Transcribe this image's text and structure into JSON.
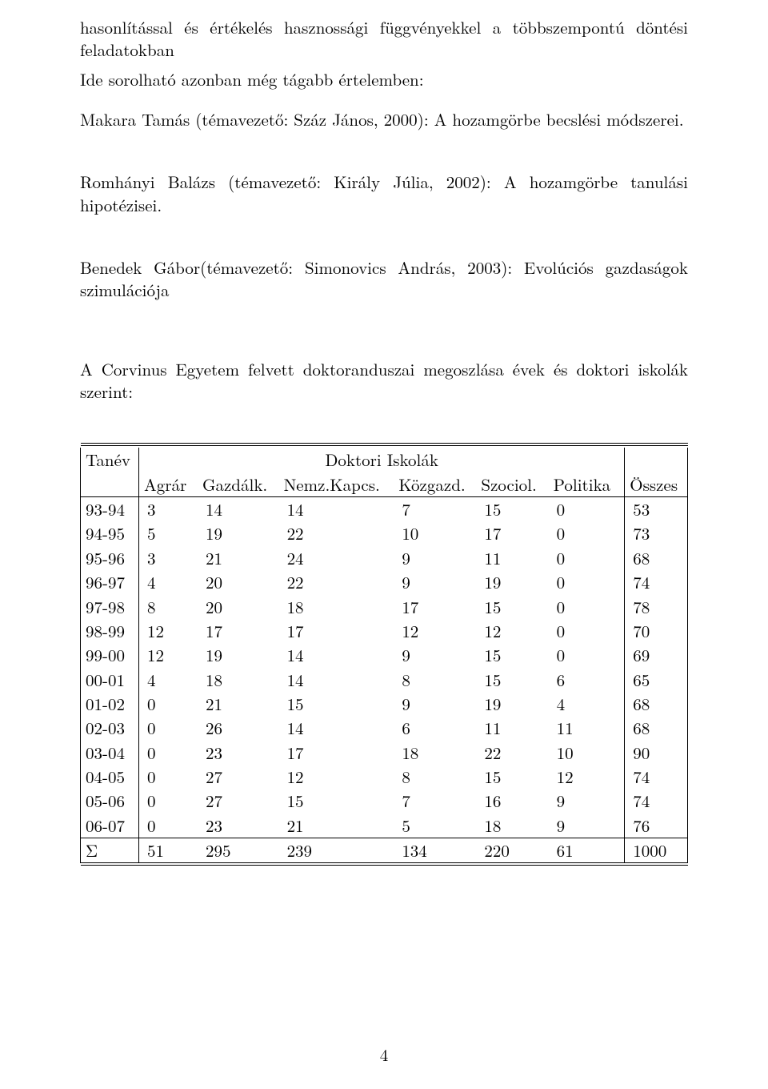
{
  "paragraphs": {
    "p1": "hasonlítással és értékelés hasznossági függvényekkel a többszempontú döntési feladatokban",
    "p2": "Ide sorolható azonban még tágabb értelemben:",
    "p3": "Makara Tamás (témavezető: Száz János, 2000): A hozamgörbe becslési módszerei.",
    "p4": "Romhányi Balázs (témavezető: Király Júlia, 2002): A hozamgörbe tanulási hipotézisei.",
    "p5": "Benedek Gábor(témavezető: Simonovics András, 2003): Evolúciós gazdaságok szimulációja",
    "p6": "A Corvinus Egyetem felvett doktoranduszai megoszlása évek és doktori iskolák szerint:"
  },
  "table": {
    "header_tanev": "Tanév",
    "header_group": "Doktori Iskolák",
    "columns": [
      "Agrár",
      "Gazdálk.",
      "Nemz.Kapcs.",
      "Közgazd.",
      "Szociol.",
      "Politika",
      "Összes"
    ],
    "rows": [
      {
        "y": "93-94",
        "v": [
          "3",
          "14",
          "14",
          "7",
          "15",
          "0",
          "53"
        ]
      },
      {
        "y": "94-95",
        "v": [
          "5",
          "19",
          "22",
          "10",
          "17",
          "0",
          "73"
        ]
      },
      {
        "y": "95-96",
        "v": [
          "3",
          "21",
          "24",
          "9",
          "11",
          "0",
          "68"
        ]
      },
      {
        "y": "96-97",
        "v": [
          "4",
          "20",
          "22",
          "9",
          "19",
          "0",
          "74"
        ]
      },
      {
        "y": "97-98",
        "v": [
          "8",
          "20",
          "18",
          "17",
          "15",
          "0",
          "78"
        ]
      },
      {
        "y": "98-99",
        "v": [
          "12",
          "17",
          "17",
          "12",
          "12",
          "0",
          "70"
        ]
      },
      {
        "y": "99-00",
        "v": [
          "12",
          "19",
          "14",
          "9",
          "15",
          "0",
          "69"
        ]
      },
      {
        "y": "00-01",
        "v": [
          "4",
          "18",
          "14",
          "8",
          "15",
          "6",
          "65"
        ]
      },
      {
        "y": "01-02",
        "v": [
          "0",
          "21",
          "15",
          "9",
          "19",
          "4",
          "68"
        ]
      },
      {
        "y": "02-03",
        "v": [
          "0",
          "26",
          "14",
          "6",
          "11",
          "11",
          "68"
        ]
      },
      {
        "y": "03-04",
        "v": [
          "0",
          "23",
          "17",
          "18",
          "22",
          "10",
          "90"
        ]
      },
      {
        "y": "04-05",
        "v": [
          "0",
          "27",
          "12",
          "8",
          "15",
          "12",
          "74"
        ]
      },
      {
        "y": "05-06",
        "v": [
          "0",
          "27",
          "15",
          "7",
          "16",
          "9",
          "74"
        ]
      },
      {
        "y": "06-07",
        "v": [
          "0",
          "23",
          "21",
          "5",
          "18",
          "9",
          "76"
        ]
      }
    ],
    "sum_label": "Σ",
    "sum": [
      "51",
      "295",
      "239",
      "134",
      "220",
      "61",
      "1000"
    ]
  },
  "page_number": "4"
}
